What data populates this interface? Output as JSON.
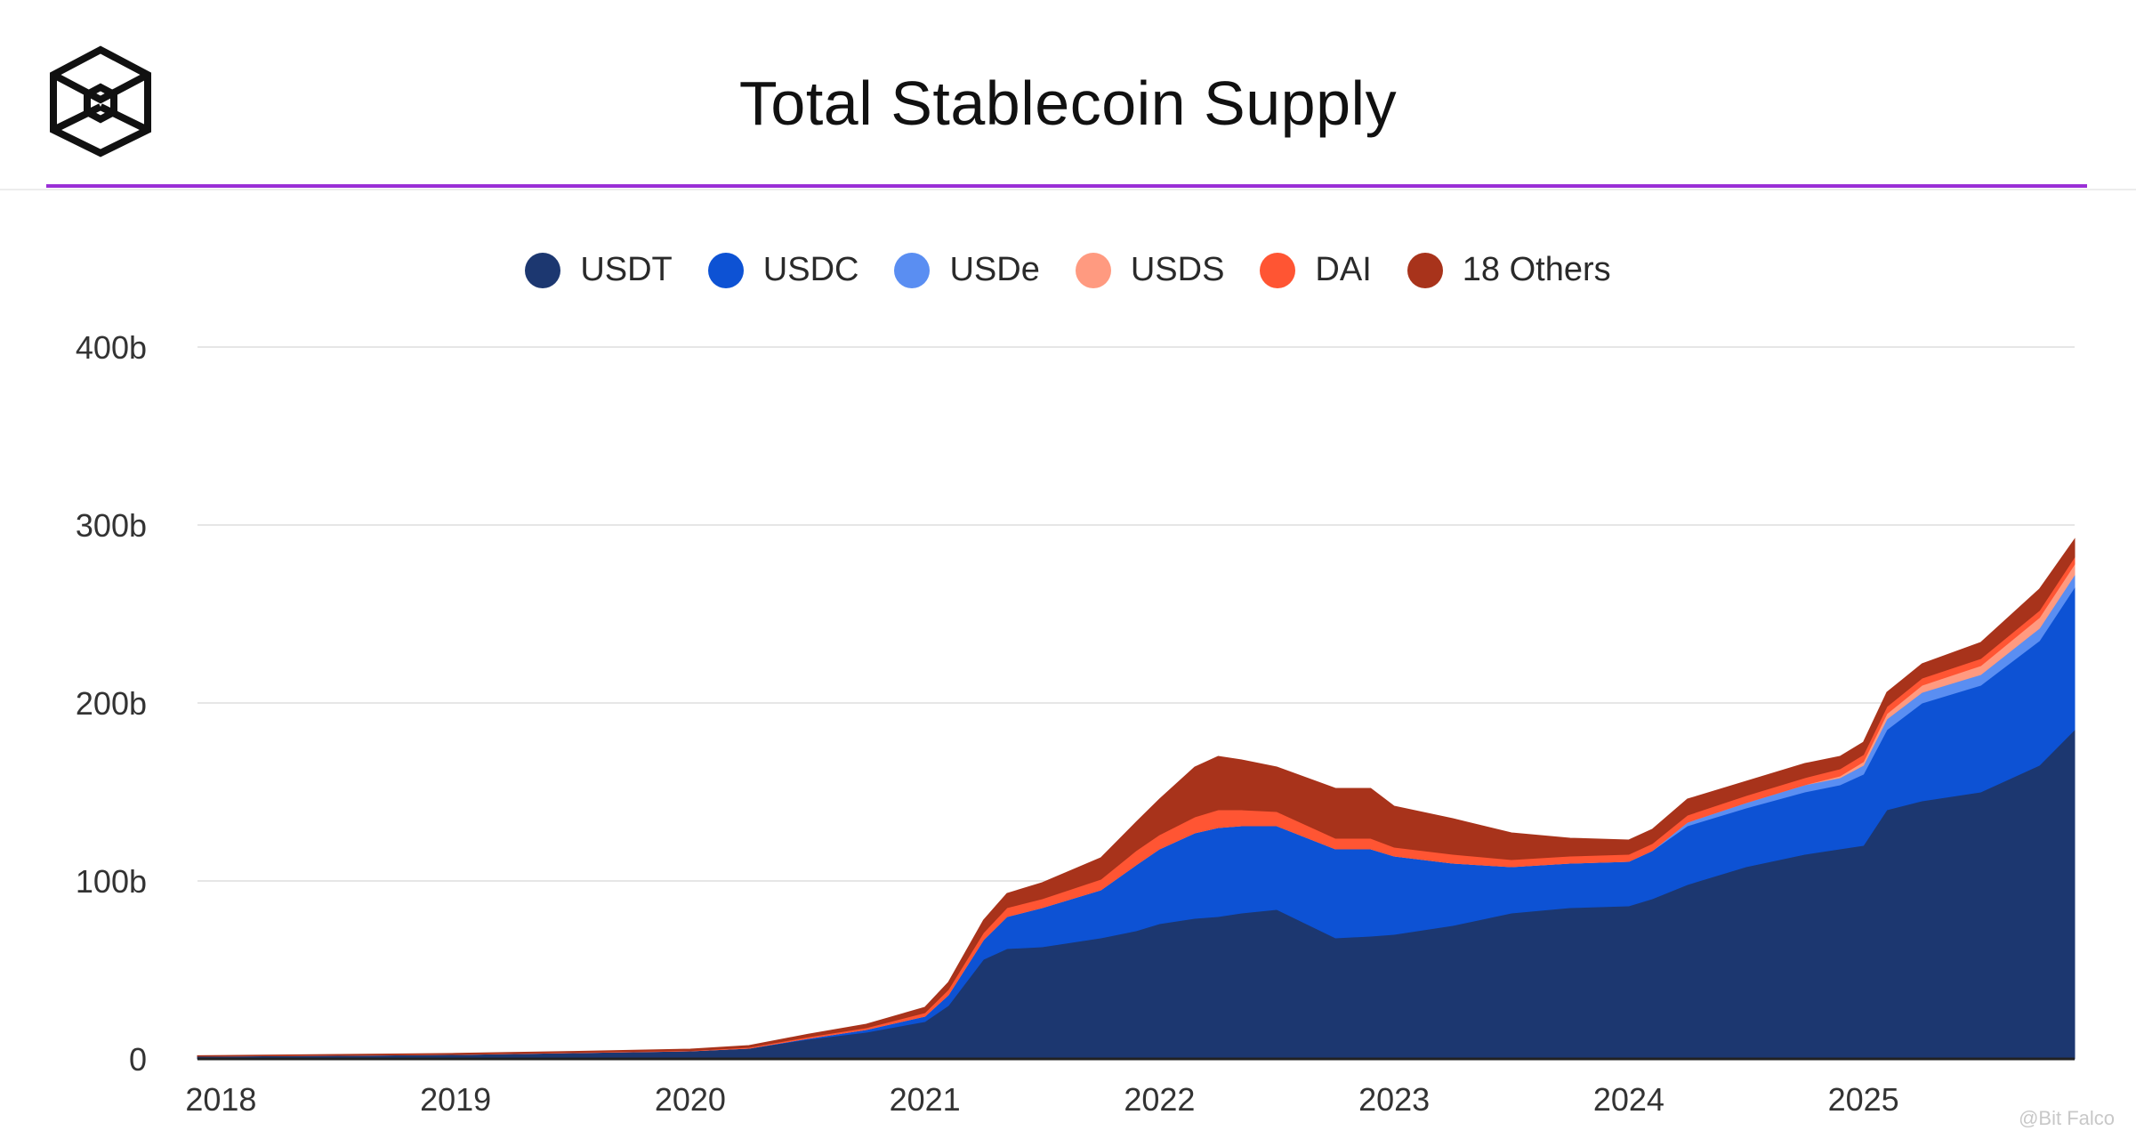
{
  "header": {
    "title": "Total Stablecoin Supply"
  },
  "watermark": "@Bit Falco",
  "colors": {
    "accent": "#9a2fd6",
    "grid": "#e6e6e6",
    "axis": "#222222"
  },
  "chart_data": {
    "type": "area",
    "stacked": true,
    "title": "Total Stablecoin Supply",
    "xlabel": "",
    "ylabel": "",
    "ylim": [
      0,
      400
    ],
    "xlim": [
      2017.9,
      2025.9
    ],
    "yticks": [
      0,
      100,
      200,
      300,
      400
    ],
    "ytick_labels": [
      "0",
      "100b",
      "200b",
      "300b",
      "400b"
    ],
    "xticks": [
      2018,
      2019,
      2020,
      2021,
      2022,
      2023,
      2024,
      2025
    ],
    "xtick_labels": [
      "2018",
      "2019",
      "2020",
      "2021",
      "2022",
      "2023",
      "2024",
      "2025"
    ],
    "grid": true,
    "legend_position": "top-center",
    "x": [
      2017.9,
      2018.5,
      2019.0,
      2019.5,
      2020.0,
      2020.25,
      2020.5,
      2020.75,
      2021.0,
      2021.1,
      2021.25,
      2021.35,
      2021.5,
      2021.75,
      2021.9,
      2022.0,
      2022.15,
      2022.25,
      2022.35,
      2022.5,
      2022.75,
      2022.9,
      2023.0,
      2023.25,
      2023.5,
      2023.75,
      2024.0,
      2024.1,
      2024.25,
      2024.5,
      2024.75,
      2024.9,
      2025.0,
      2025.1,
      2025.25,
      2025.5,
      2025.75,
      2025.9
    ],
    "series": [
      {
        "name": "USDT",
        "color": "#1c3770",
        "values": [
          1.5,
          2,
          2.5,
          3.5,
          4.5,
          6,
          11,
          15,
          21,
          30,
          56,
          62,
          63,
          68,
          72,
          76,
          79,
          80,
          82,
          84,
          68,
          69,
          70,
          75,
          82,
          85,
          86,
          90,
          98,
          108,
          115,
          118,
          120,
          140,
          145,
          150,
          165,
          185
        ]
      },
      {
        "name": "USDC",
        "color": "#0d52d4",
        "values": [
          0,
          0,
          0,
          0,
          0,
          0,
          0.5,
          1.5,
          3,
          6,
          11,
          18,
          22,
          27,
          37,
          42,
          48,
          50,
          49,
          47,
          50,
          49,
          44,
          35,
          26,
          25,
          25,
          27,
          33,
          33,
          35,
          36,
          40,
          45,
          55,
          60,
          70,
          80
        ]
      },
      {
        "name": "USDe",
        "color": "#5a8ef2",
        "values": [
          0,
          0,
          0,
          0,
          0,
          0,
          0,
          0,
          0,
          0,
          0,
          0,
          0,
          0,
          0,
          0,
          0,
          0,
          0,
          0,
          0,
          0,
          0,
          0,
          0,
          0,
          0,
          0,
          2,
          3,
          4,
          4,
          5,
          6,
          6,
          6,
          7,
          7
        ]
      },
      {
        "name": "USDS",
        "color": "#ff9a80",
        "values": [
          0,
          0,
          0,
          0,
          0,
          0,
          0,
          0,
          0,
          0,
          0,
          0,
          0,
          0,
          0,
          0,
          0,
          0,
          0,
          0,
          0,
          0,
          0,
          0,
          0,
          0,
          0,
          0,
          0,
          0,
          0,
          1,
          2,
          3,
          4,
          5,
          6,
          6
        ]
      },
      {
        "name": "DAI",
        "color": "#ff5533",
        "values": [
          0,
          0.1,
          0.1,
          0.2,
          0.2,
          0.5,
          0.8,
          1,
          2,
          3,
          4,
          5,
          5,
          6,
          8,
          8,
          9,
          10,
          9,
          8,
          6,
          6,
          5,
          5,
          4,
          4,
          4,
          4,
          4,
          4,
          4,
          4,
          4,
          4,
          4,
          4,
          4,
          4
        ]
      },
      {
        "name": "18 Others",
        "color": "#a8331b",
        "values": [
          0.3,
          0.4,
          0.5,
          0.5,
          0.8,
          1,
          1.5,
          2,
          3,
          4,
          7,
          8,
          9,
          12,
          16,
          20,
          28,
          30,
          28,
          25,
          28,
          28,
          23,
          20,
          15,
          10,
          8,
          8,
          9,
          8,
          8,
          7,
          7,
          8,
          8,
          9,
          12,
          10
        ]
      }
    ]
  }
}
